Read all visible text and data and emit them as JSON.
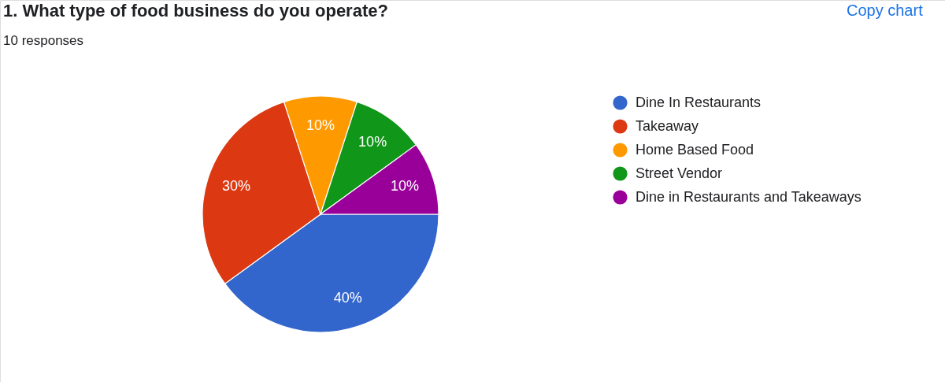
{
  "chart_data": {
    "type": "pie",
    "title": "1. What type of food business do you operate?",
    "subtitle": "10 responses",
    "categories": [
      "Dine In Restaurants",
      "Takeaway",
      "Home Based Food",
      "Street Vendor",
      "Dine in Restaurants and Takeaways"
    ],
    "values": [
      40,
      30,
      10,
      10,
      10
    ],
    "colors": [
      "#3366cc",
      "#dc3912",
      "#ff9900",
      "#109618",
      "#990099"
    ],
    "value_labels": [
      "40%",
      "30%",
      "10%",
      "10%",
      "10%"
    ],
    "legend": "right",
    "annotations": [
      "Copy chart"
    ]
  }
}
